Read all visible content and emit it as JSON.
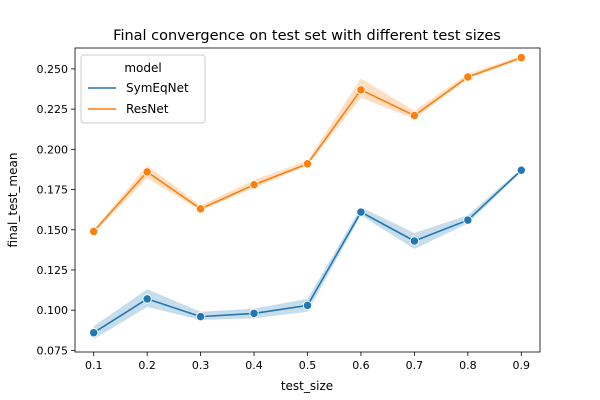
{
  "chart_data": {
    "type": "line",
    "title": "Final convergence on test set with different test sizes",
    "xlabel": "test_size",
    "ylabel": "final_test_mean",
    "x": [
      0.1,
      0.2,
      0.3,
      0.4,
      0.5,
      0.6,
      0.7,
      0.8,
      0.9
    ],
    "xticks": [
      "0.1",
      "0.2",
      "0.3",
      "0.4",
      "0.5",
      "0.6",
      "0.7",
      "0.8",
      "0.9"
    ],
    "yticks": [
      "0.075",
      "0.100",
      "0.125",
      "0.150",
      "0.175",
      "0.200",
      "0.225",
      "0.250"
    ],
    "xlim": [
      0.065,
      0.935
    ],
    "ylim": [
      0.074,
      0.263
    ],
    "grid": false,
    "legend": {
      "title": "model",
      "position": "top-left"
    },
    "series": [
      {
        "name": "SymEqNet",
        "color": "#1f77b4",
        "values": [
          0.086,
          0.107,
          0.096,
          0.098,
          0.103,
          0.161,
          0.143,
          0.156,
          0.187
        ],
        "ci_low": [
          0.082,
          0.102,
          0.094,
          0.095,
          0.099,
          0.159,
          0.138,
          0.154,
          0.186
        ],
        "ci_high": [
          0.09,
          0.113,
          0.099,
          0.101,
          0.107,
          0.164,
          0.148,
          0.159,
          0.188
        ]
      },
      {
        "name": "ResNet",
        "color": "#ff7f0e",
        "values": [
          0.149,
          0.186,
          0.163,
          0.178,
          0.191,
          0.237,
          0.221,
          0.245,
          0.257
        ],
        "ci_low": [
          0.148,
          0.182,
          0.162,
          0.176,
          0.19,
          0.232,
          0.219,
          0.244,
          0.256
        ],
        "ci_high": [
          0.15,
          0.19,
          0.165,
          0.181,
          0.193,
          0.244,
          0.224,
          0.247,
          0.258
        ]
      }
    ]
  }
}
